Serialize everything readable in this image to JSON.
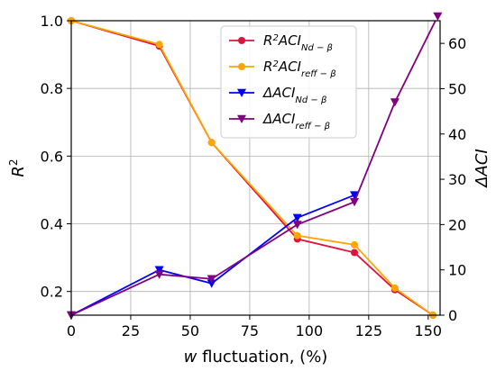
{
  "chart_data": {
    "type": "line",
    "xlabel": {
      "italic": "w",
      "rest": " fluctuation, (%)"
    },
    "ylabel_left": "R",
    "ylabel_left_sup": "2",
    "ylabel_right": "ΔACI",
    "xlim": [
      0,
      155
    ],
    "ylim_left": [
      0.13,
      1.0
    ],
    "ylim_right": [
      0,
      65
    ],
    "x_ticks": [
      0,
      25,
      50,
      75,
      100,
      125,
      150
    ],
    "y_left_ticks": [
      0.2,
      0.4,
      0.6,
      0.8,
      1.0
    ],
    "y_right_ticks": [
      0,
      10,
      20,
      30,
      40,
      50,
      60
    ],
    "grid": true,
    "legend_position": "top-center",
    "series": [
      {
        "name": "R²ACI_{Nd−β}",
        "legend": {
          "main": "R",
          "sup": "2",
          "base": "ACI",
          "sub": "Nd − β"
        },
        "axis": "left",
        "color": "#dc143c",
        "marker": "circle",
        "x": [
          0,
          37,
          59,
          95,
          119,
          136,
          152
        ],
        "y": [
          1.0,
          0.925,
          0.64,
          0.355,
          0.315,
          0.205,
          0.13
        ]
      },
      {
        "name": "R²ACI_{reff−β}",
        "legend": {
          "main": "R",
          "sup": "2",
          "base": "ACI",
          "sub": "reff − β"
        },
        "axis": "left",
        "color": "#ffa500",
        "marker": "circle",
        "x": [
          0,
          37,
          59,
          95,
          119,
          136,
          152
        ],
        "y": [
          1.0,
          0.93,
          0.64,
          0.365,
          0.338,
          0.21,
          0.13
        ]
      },
      {
        "name": "ΔACI_{Nd−β}",
        "legend": {
          "main": "ΔACI",
          "sub": "Nd − β"
        },
        "axis": "right",
        "color": "#0000ff",
        "marker": "triangle-down",
        "x": [
          0,
          37,
          59,
          95,
          119
        ],
        "y": [
          0,
          10,
          7,
          21.5,
          26.5
        ]
      },
      {
        "name": "ΔACI_{reff−β}",
        "legend": {
          "main": "ΔACI",
          "sub": "reff − β"
        },
        "axis": "right",
        "color": "#800080",
        "marker": "triangle-down",
        "x": [
          0,
          37,
          59,
          95,
          119,
          136,
          154
        ],
        "y": [
          0,
          9,
          8,
          20,
          25,
          47,
          66
        ]
      }
    ]
  }
}
